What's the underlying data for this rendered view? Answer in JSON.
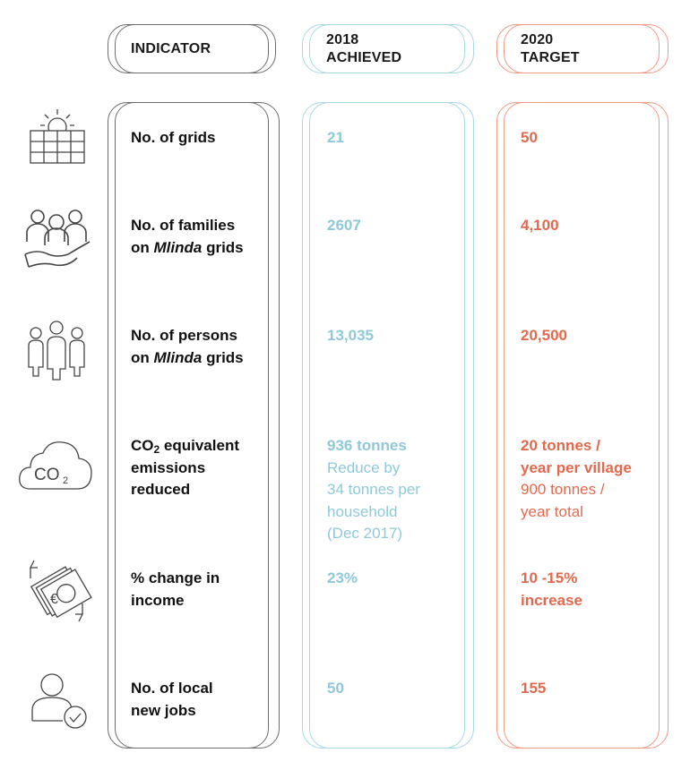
{
  "header": {
    "indicator": "INDICATOR",
    "achieved_line1": "2018",
    "achieved_line2": "ACHIEVED",
    "target_line1": "2020",
    "target_line2": "TARGET"
  },
  "rows": [
    {
      "icon": "solar-panel-icon",
      "indicator": [
        "No. of grids"
      ],
      "achieved": [
        "21"
      ],
      "target": [
        "50"
      ]
    },
    {
      "icon": "families-hand-icon",
      "indicator": [
        "No. of families",
        "on ",
        "Mlinda",
        " grids"
      ],
      "achieved": [
        "2607"
      ],
      "target": [
        "4,100"
      ]
    },
    {
      "icon": "people-group-icon",
      "indicator": [
        "No. of persons",
        "on ",
        "Mlinda",
        " grids"
      ],
      "achieved": [
        "13,035"
      ],
      "target": [
        "20,500"
      ]
    },
    {
      "icon": "co2-cloud-icon",
      "indicator": [
        "CO",
        "2",
        " equivalent",
        "emissions",
        "reduced"
      ],
      "achieved_bold": "936 tonnes",
      "achieved_light": [
        "Reduce by",
        "34 tonnes per",
        "household",
        "(Dec 2017)"
      ],
      "target_bold": [
        "20 tonnes /",
        "year per village"
      ],
      "target_light": [
        "900 tonnes /",
        "year total"
      ],
      "co2_icon_text": "CO",
      "co2_icon_sub": "2"
    },
    {
      "icon": "euro-money-exchange-icon",
      "indicator": [
        "% change in",
        "income"
      ],
      "achieved": [
        "23%"
      ],
      "target": [
        "10 -15%",
        "increase"
      ]
    },
    {
      "icon": "user-check-icon",
      "indicator": [
        "No. of local",
        "new jobs"
      ],
      "achieved": [
        "50"
      ],
      "target": [
        "155"
      ]
    }
  ],
  "colors": {
    "indicator_border": "#6d6d6d",
    "achieved": "#8fc9d9",
    "achieved_border": "#a9d7e3",
    "target": "#e2694d",
    "target_border": "#ef9a84"
  }
}
